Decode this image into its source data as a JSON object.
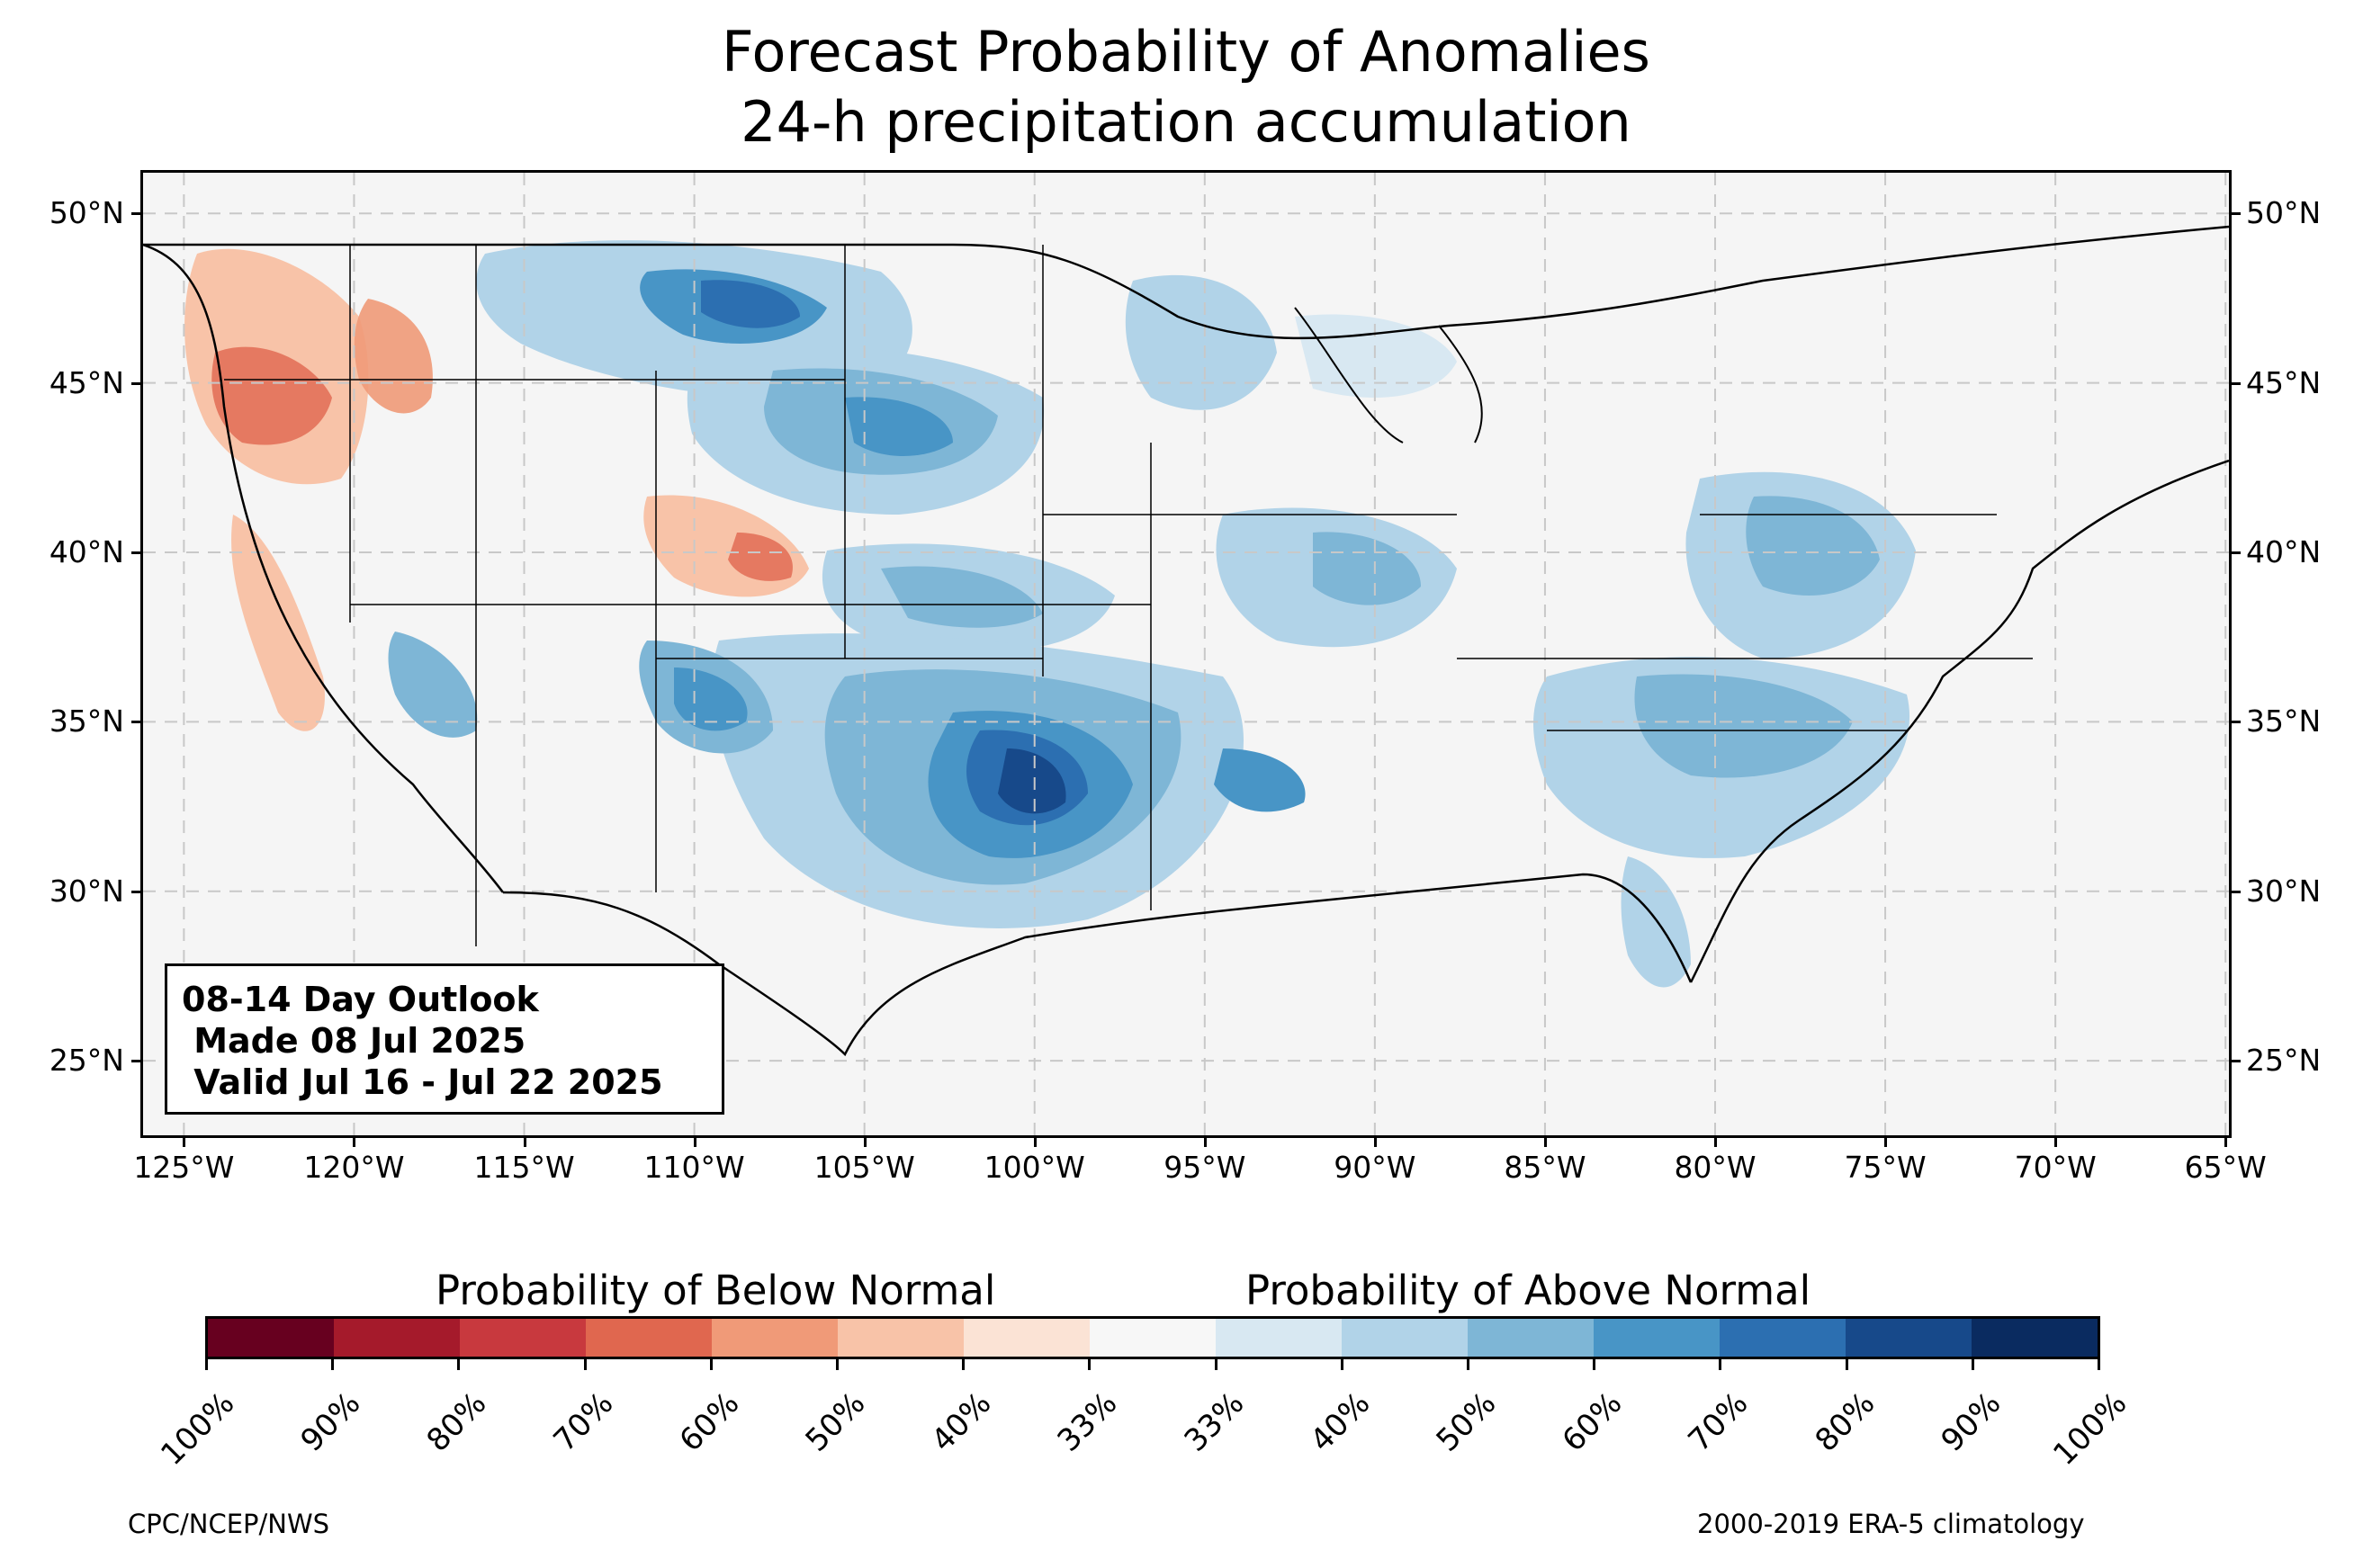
{
  "title_line1": "Forecast Probability of Anomalies",
  "title_line2": "24-h precipitation accumulation",
  "map": {
    "lon_range": [
      -126.2,
      -64.9
    ],
    "lat_range": [
      22.8,
      51.2
    ],
    "lat_ticks": [
      "25°N",
      "30°N",
      "35°N",
      "40°N",
      "45°N",
      "50°N"
    ],
    "lat_values": [
      25,
      30,
      35,
      40,
      45,
      50
    ],
    "lon_ticks": [
      "125°W",
      "120°W",
      "115°W",
      "110°W",
      "105°W",
      "100°W",
      "95°W",
      "90°W",
      "85°W",
      "80°W",
      "75°W",
      "70°W",
      "65°W"
    ],
    "lon_values": [
      -125,
      -120,
      -115,
      -110,
      -105,
      -100,
      -95,
      -90,
      -85,
      -80,
      -75,
      -70,
      -65
    ],
    "gridlines": "dashed",
    "land_color": "#f5f5f5"
  },
  "outlook_box": {
    "line1": "08-14 Day Outlook",
    "line2": " Made 08 Jul 2025",
    "line3": " Valid Jul 16 - Jul 22 2025"
  },
  "colorbar": {
    "below_label": "Probability of Below Normal",
    "above_label": "Probability of Above Normal",
    "colors": [
      "#67001f",
      "#a51a2b",
      "#c8393e",
      "#e0674f",
      "#f09a78",
      "#f8c3a8",
      "#fbe3d5",
      "#f7f7f7",
      "#d8e8f2",
      "#b1d3e8",
      "#7eb6d6",
      "#4895c6",
      "#2c6fb1",
      "#17498a",
      "#0a2b60"
    ],
    "tick_labels": [
      "100%",
      "90%",
      "80%",
      "70%",
      "60%",
      "50%",
      "40%",
      "33%",
      "33%",
      "40%",
      "50%",
      "60%",
      "70%",
      "80%",
      "90%",
      "100%"
    ]
  },
  "footer": {
    "left": "CPC/NCEP/NWS",
    "right": "2000-2019 ERA-5 climatology"
  }
}
